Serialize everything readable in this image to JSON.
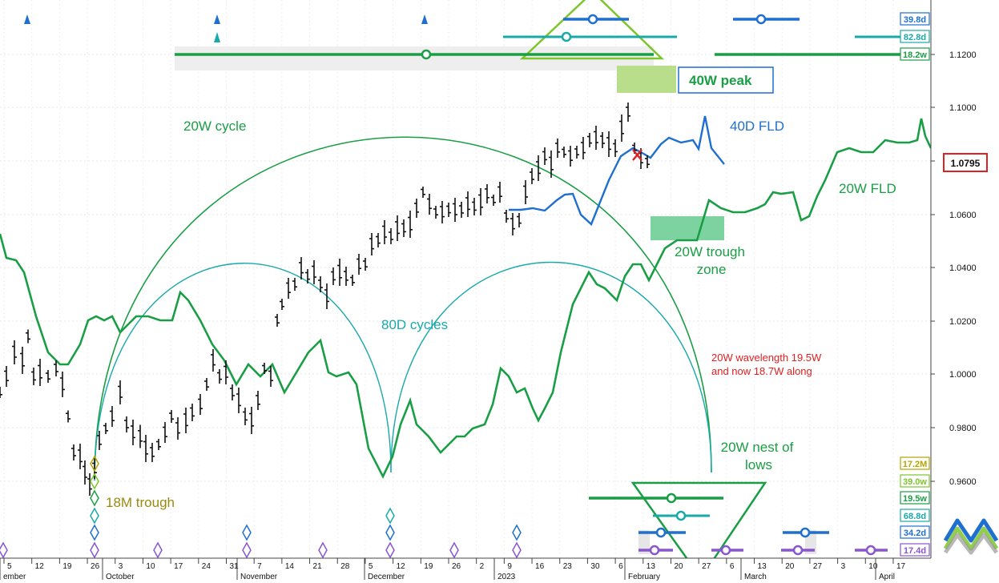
{
  "chart_data": {
    "type": "line",
    "title": "",
    "price_label": "1.0795",
    "y_ticks": [
      "1.1200",
      "1.1000",
      "1.0800",
      "1.0600",
      "1.0400",
      "1.0200",
      "1.0000",
      "0.9800",
      "0.9600"
    ],
    "ylim": [
      0.95,
      1.135
    ],
    "x_day_ticks": [
      "5",
      "12",
      "19",
      "26",
      "3",
      "10",
      "17",
      "24",
      "31",
      "7",
      "14",
      "21",
      "28",
      "5",
      "12",
      "19",
      "26",
      "2",
      "9",
      "16",
      "23",
      "30",
      "6",
      "13",
      "20",
      "27",
      "6",
      "13",
      "20",
      "27",
      "3",
      "10",
      "17"
    ],
    "x_month_labels": [
      "ember",
      "October",
      "November",
      "December",
      "2023",
      "February",
      "March",
      "April"
    ],
    "series": [
      {
        "name": "40D FLD",
        "color": "#1f6fd1",
        "values": [
          [
            0.1,
            1.062
          ],
          [
            0.12,
            1.0618
          ],
          [
            0.14,
            1.064
          ],
          [
            0.16,
            1.066
          ],
          [
            0.17,
            1.067
          ],
          [
            0.18,
            1.064
          ],
          [
            0.19,
            1.06
          ],
          [
            0.2,
            1.058
          ],
          [
            0.21,
            1.062
          ],
          [
            0.22,
            1.07
          ],
          [
            0.23,
            1.078
          ],
          [
            0.24,
            1.081
          ],
          [
            0.25,
            1.083
          ],
          [
            0.26,
            1.079
          ],
          [
            0.27,
            1.083
          ],
          [
            0.28,
            1.088
          ],
          [
            0.29,
            1.086
          ],
          [
            0.3,
            1.088
          ],
          [
            0.31,
            1.086
          ],
          [
            0.32,
            1.096
          ],
          [
            0.33,
            1.084
          ],
          [
            0.34,
            1.079
          ]
        ]
      },
      {
        "name": "20W FLD",
        "color": "#1a9e45",
        "values": [
          [
            0.0,
            1.054
          ],
          [
            0.05,
            1.05
          ],
          [
            0.1,
            1.032
          ],
          [
            0.15,
            1.018
          ],
          [
            0.2,
            1.01
          ],
          [
            0.25,
            1.02
          ],
          [
            0.3,
            1.015
          ],
          [
            0.35,
            1.0
          ],
          [
            0.4,
            0.995
          ],
          [
            0.45,
            1.01
          ],
          [
            0.5,
            0.998
          ],
          [
            0.55,
            0.97
          ],
          [
            0.6,
            0.962
          ],
          [
            0.62,
            0.99
          ],
          [
            0.65,
            0.97
          ],
          [
            0.7,
            0.978
          ],
          [
            0.75,
            0.98
          ],
          [
            0.8,
            0.98
          ],
          [
            0.85,
            0.995
          ],
          [
            0.9,
            1.0
          ],
          [
            0.92,
            0.985
          ],
          [
            0.95,
            1.02
          ],
          [
            1.0,
            1.035
          ],
          [
            1.05,
            1.05
          ],
          [
            1.1,
            1.064
          ],
          [
            1.15,
            1.062
          ],
          [
            1.2,
            1.068
          ],
          [
            1.25,
            1.06
          ],
          [
            1.3,
            1.075
          ],
          [
            1.35,
            1.082
          ],
          [
            1.4,
            1.08
          ],
          [
            1.45,
            1.085
          ],
          [
            1.5,
            1.08
          ]
        ]
      }
    ],
    "labels": {
      "cycle_20w": "20W cycle",
      "cycles_80d": "80D cycles",
      "fld_40d": "40D FLD",
      "fld_20w": "20W FLD",
      "peak_40w": "40W peak",
      "trough_zone_line1": "20W trough",
      "trough_zone_line2": "zone",
      "wavelength_line1": "20W wavelength 19.5W",
      "wavelength_line2": "and now 18.7W along",
      "nest_line1": "20W nest of",
      "nest_line2": "lows",
      "trough_18m": "18M trough"
    },
    "cycle_badges_top": [
      {
        "label": "39.8d",
        "color": "#1f6fd1"
      },
      {
        "label": "82.8d",
        "color": "#1aa9a9"
      },
      {
        "label": "18.2w",
        "color": "#1a9e45"
      }
    ],
    "cycle_badges_bottom": [
      {
        "label": "17.2M",
        "color": "#b8a400"
      },
      {
        "label": "39.0w",
        "color": "#7cc62b"
      },
      {
        "label": "19.5w",
        "color": "#1a9e45"
      },
      {
        "label": "68.8d",
        "color": "#1aa9a9"
      },
      {
        "label": "34.2d",
        "color": "#1f6fd1"
      },
      {
        "label": "17.4d",
        "color": "#8a55d0"
      }
    ],
    "grid": true
  }
}
